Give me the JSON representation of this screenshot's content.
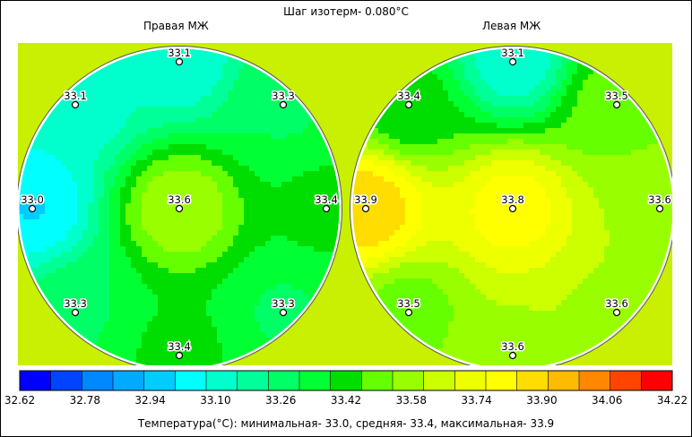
{
  "title": "Шаг изотерм- 0.080°C",
  "panels": [
    {
      "label": "Правая МЖ"
    },
    {
      "label": "Левая МЖ"
    }
  ],
  "chart_data": {
    "type": "heatmap",
    "title": "Шаг изотерм- 0.080°C",
    "isotherm_step": 0.08,
    "colorbar": {
      "min": 32.62,
      "max": 34.22,
      "tick_labels": [
        "32.62",
        "32.78",
        "32.94",
        "33.10",
        "33.26",
        "33.42",
        "33.58",
        "33.74",
        "33.90",
        "34.06",
        "34.22"
      ],
      "colors": [
        "#0000ff",
        "#0044ff",
        "#0088ff",
        "#00aaff",
        "#00ccff",
        "#00ffff",
        "#00ffcc",
        "#00ff99",
        "#00ff66",
        "#00ff33",
        "#00dd00",
        "#66ff00",
        "#99ff00",
        "#ccff00",
        "#eeff00",
        "#ffff00",
        "#ffdd00",
        "#ffbb00",
        "#ff8800",
        "#ff4400",
        "#ff0000"
      ]
    },
    "background_color": "#c8f000",
    "maps": [
      {
        "name": "Правая МЖ",
        "points": [
          {
            "pos": "top",
            "value": "33.1"
          },
          {
            "pos": "upper-left",
            "value": "33.1"
          },
          {
            "pos": "upper-right",
            "value": "33.3"
          },
          {
            "pos": "left",
            "value": "33.0"
          },
          {
            "pos": "center",
            "value": "33.6"
          },
          {
            "pos": "right",
            "value": "33.4"
          },
          {
            "pos": "lower-left",
            "value": "33.3"
          },
          {
            "pos": "lower-right",
            "value": "33.3"
          },
          {
            "pos": "bottom",
            "value": "33.4"
          }
        ]
      },
      {
        "name": "Левая МЖ",
        "points": [
          {
            "pos": "top",
            "value": "33.1"
          },
          {
            "pos": "upper-left",
            "value": "33.4"
          },
          {
            "pos": "upper-right",
            "value": "33.5"
          },
          {
            "pos": "left",
            "value": "33.9"
          },
          {
            "pos": "center",
            "value": "33.8"
          },
          {
            "pos": "right",
            "value": "33.6"
          },
          {
            "pos": "lower-left",
            "value": "33.5"
          },
          {
            "pos": "lower-right",
            "value": "33.6"
          },
          {
            "pos": "bottom",
            "value": "33.6"
          }
        ]
      }
    ]
  },
  "footer": "Температура(°C): минимальная-   33.0,  средняя-   33.4,  максимальная-   33.9"
}
